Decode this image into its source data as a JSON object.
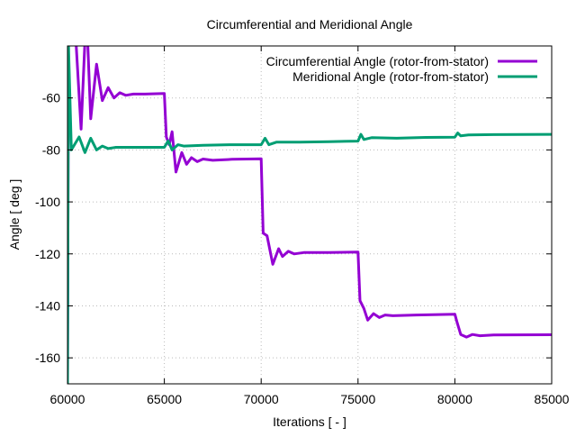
{
  "chart_data": {
    "type": "line",
    "title": "Circumferential and Meridional Angle",
    "xlabel": "Iterations [ - ]",
    "ylabel": "Angle [ deg ]",
    "xlim": [
      60000,
      85000
    ],
    "ylim": [
      -170,
      -40
    ],
    "xticks": [
      60000,
      65000,
      70000,
      75000,
      80000,
      85000
    ],
    "yticks": [
      -160,
      -140,
      -120,
      -100,
      -80,
      -60
    ],
    "grid": true,
    "legend_position": "top-right",
    "series": [
      {
        "name": "Circumferential Angle (rotor-from-stator)",
        "color": "#9400d3",
        "x": [
          60000,
          60050,
          60150,
          60300,
          60450,
          60700,
          60900,
          61050,
          61200,
          61500,
          61800,
          62100,
          62400,
          62700,
          63000,
          63400,
          64000,
          65000,
          65100,
          65250,
          65400,
          65600,
          65900,
          66150,
          66400,
          66700,
          67000,
          67500,
          68500,
          70000,
          70100,
          70300,
          70600,
          70900,
          71100,
          71400,
          71700,
          72200,
          73500,
          75000,
          75100,
          75300,
          75500,
          75800,
          76100,
          76400,
          76800,
          78000,
          80000,
          80100,
          80300,
          80600,
          80900,
          81300,
          82000,
          85000
        ],
        "y": [
          -170,
          -40,
          -30,
          -35,
          -40,
          -72,
          -38,
          -40,
          -68,
          -47,
          -61,
          -56,
          -60,
          -58,
          -59,
          -58.5,
          -58.5,
          -58.3,
          -75,
          -78,
          -73,
          -88.5,
          -81,
          -85.5,
          -83,
          -84.5,
          -83.5,
          -84,
          -83.6,
          -83.4,
          -112,
          -113,
          -124,
          -118,
          -121,
          -119,
          -120,
          -119.5,
          -119.5,
          -119.3,
          -138,
          -141,
          -145.5,
          -143,
          -144.5,
          -143.5,
          -143.8,
          -143.5,
          -143.2,
          -146,
          -151,
          -152,
          -151,
          -151.5,
          -151.2,
          -151.1
        ]
      },
      {
        "name": "Meridional Angle (rotor-from-stator)",
        "color": "#009e73",
        "x": [
          60000,
          60050,
          60200,
          60600,
          60900,
          61200,
          61500,
          61800,
          62100,
          62500,
          63000,
          64000,
          65000,
          65200,
          65400,
          65700,
          66000,
          67000,
          68500,
          70000,
          70200,
          70400,
          70800,
          72000,
          73500,
          75000,
          75150,
          75300,
          75700,
          77000,
          78500,
          80000,
          80150,
          80300,
          80700,
          82000,
          85000
        ],
        "y": [
          -170,
          -40,
          -80,
          -75,
          -81,
          -75.5,
          -80,
          -78.5,
          -79.5,
          -79,
          -79,
          -79,
          -79,
          -76.5,
          -80,
          -78,
          -78.5,
          -78.2,
          -78,
          -78,
          -75.5,
          -78,
          -77,
          -77,
          -76.8,
          -76.6,
          -74,
          -76,
          -75.3,
          -75.5,
          -75.2,
          -75.1,
          -73.5,
          -74.6,
          -74.2,
          -74.1,
          -74
        ]
      }
    ]
  }
}
